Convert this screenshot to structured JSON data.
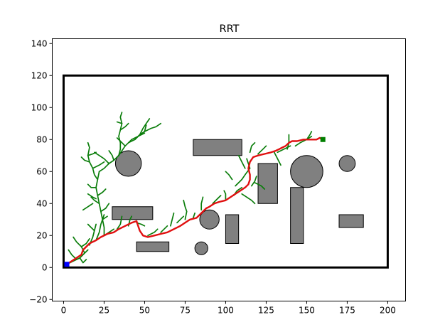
{
  "chart_data": {
    "type": "scatter",
    "title": "RRT",
    "xlim": [
      -7,
      211
    ],
    "ylim": [
      -21,
      143
    ],
    "x_ticks": [
      0,
      25,
      50,
      75,
      100,
      125,
      150,
      175,
      200
    ],
    "y_ticks": [
      -20,
      0,
      20,
      40,
      60,
      80,
      100,
      120,
      140
    ],
    "grid": false,
    "boundary": {
      "x0": 0,
      "y0": 0,
      "x1": 200,
      "y1": 120
    },
    "rect_obstacles": [
      {
        "x": 30,
        "y": 30,
        "w": 25,
        "h": 8
      },
      {
        "x": 45,
        "y": 10,
        "w": 20,
        "h": 6
      },
      {
        "x": 80,
        "y": 70,
        "w": 30,
        "h": 10
      },
      {
        "x": 100,
        "y": 15,
        "w": 8,
        "h": 18
      },
      {
        "x": 120,
        "y": 40,
        "w": 12,
        "h": 25
      },
      {
        "x": 140,
        "y": 15,
        "w": 8,
        "h": 35
      },
      {
        "x": 170,
        "y": 25,
        "w": 15,
        "h": 8
      }
    ],
    "circle_obstacles": [
      {
        "cx": 40,
        "cy": 65,
        "r": 8
      },
      {
        "cx": 90,
        "cy": 30,
        "r": 6
      },
      {
        "cx": 85,
        "cy": 12,
        "r": 4
      },
      {
        "cx": 150,
        "cy": 60,
        "r": 10
      },
      {
        "cx": 175,
        "cy": 65,
        "r": 5
      }
    ],
    "start": [
      2,
      2
    ],
    "goal": [
      160,
      80
    ],
    "start_color": "#0000ff",
    "goal_color": "#007f00",
    "tree_color": "#0a7d0a",
    "path_color": "#e01010",
    "tree_branches": [
      [
        [
          2,
          2
        ],
        [
          6,
          4
        ],
        [
          10,
          6
        ],
        [
          13,
          9
        ],
        [
          15,
          11
        ]
      ],
      [
        [
          8,
          5
        ],
        [
          5,
          8
        ],
        [
          3,
          11
        ]
      ],
      [
        [
          10,
          6
        ],
        [
          12,
          3
        ],
        [
          14,
          5
        ]
      ],
      [
        [
          13,
          9
        ],
        [
          11,
          13
        ],
        [
          8,
          16
        ],
        [
          6,
          19
        ]
      ],
      [
        [
          11,
          13
        ],
        [
          14,
          15
        ],
        [
          16,
          18
        ]
      ],
      [
        [
          16,
          14
        ],
        [
          18,
          19
        ],
        [
          19,
          23
        ],
        [
          20,
          27
        ]
      ],
      [
        [
          19,
          23
        ],
        [
          17,
          25
        ],
        [
          15,
          27
        ]
      ],
      [
        [
          20,
          17
        ],
        [
          22,
          22
        ],
        [
          23,
          27
        ],
        [
          24,
          30
        ],
        [
          25,
          33
        ]
      ],
      [
        [
          24,
          30
        ],
        [
          27,
          32
        ]
      ],
      [
        [
          25,
          20
        ],
        [
          25,
          25
        ],
        [
          24,
          30
        ],
        [
          23,
          35
        ],
        [
          22,
          40
        ],
        [
          21,
          45
        ],
        [
          20,
          50
        ],
        [
          21,
          55
        ],
        [
          22,
          60
        ]
      ],
      [
        [
          23,
          35
        ],
        [
          26,
          37
        ],
        [
          28,
          40
        ]
      ],
      [
        [
          22,
          40
        ],
        [
          19,
          42
        ],
        [
          17,
          44
        ]
      ],
      [
        [
          21,
          45
        ],
        [
          24,
          47
        ],
        [
          26,
          49
        ]
      ],
      [
        [
          20,
          50
        ],
        [
          17,
          50
        ],
        [
          15,
          52
        ]
      ],
      [
        [
          21,
          55
        ],
        [
          19,
          58
        ],
        [
          18,
          62
        ],
        [
          16,
          66
        ],
        [
          15,
          70
        ],
        [
          16,
          75
        ],
        [
          15,
          78
        ]
      ],
      [
        [
          18,
          62
        ],
        [
          22,
          64
        ],
        [
          25,
          66
        ]
      ],
      [
        [
          16,
          66
        ],
        [
          13,
          67
        ],
        [
          11,
          69
        ]
      ],
      [
        [
          15,
          70
        ],
        [
          18,
          71
        ],
        [
          20,
          72
        ]
      ],
      [
        [
          22,
          60
        ],
        [
          25,
          62
        ],
        [
          28,
          65
        ],
        [
          31,
          67
        ],
        [
          34,
          70
        ]
      ],
      [
        [
          31,
          67
        ],
        [
          30,
          70
        ],
        [
          28,
          73
        ]
      ],
      [
        [
          34,
          70
        ],
        [
          36,
          73
        ],
        [
          38,
          76
        ],
        [
          40,
          78
        ],
        [
          42,
          80
        ]
      ],
      [
        [
          38,
          76
        ],
        [
          35,
          79
        ],
        [
          33,
          81
        ]
      ],
      [
        [
          40,
          78
        ],
        [
          44,
          80
        ],
        [
          47,
          83
        ]
      ],
      [
        [
          42,
          80
        ],
        [
          46,
          82
        ],
        [
          50,
          84
        ]
      ],
      [
        [
          34,
          70
        ],
        [
          35,
          74
        ],
        [
          35,
          78
        ],
        [
          34,
          82
        ],
        [
          35,
          86
        ],
        [
          36,
          90
        ],
        [
          35,
          94
        ],
        [
          36,
          97
        ]
      ],
      [
        [
          35,
          86
        ],
        [
          38,
          88
        ],
        [
          40,
          90
        ]
      ],
      [
        [
          36,
          90
        ],
        [
          33,
          91
        ]
      ],
      [
        [
          44,
          80
        ],
        [
          47,
          83
        ],
        [
          50,
          85
        ],
        [
          54,
          87
        ],
        [
          57,
          88
        ],
        [
          60,
          90
        ]
      ],
      [
        [
          47,
          83
        ],
        [
          49,
          87
        ],
        [
          51,
          90
        ],
        [
          53,
          93
        ]
      ],
      [
        [
          50,
          85
        ],
        [
          51,
          89
        ]
      ],
      [
        [
          28,
          65
        ],
        [
          25,
          68
        ],
        [
          22,
          70
        ],
        [
          19,
          72
        ]
      ],
      [
        [
          25,
          20
        ],
        [
          28,
          22
        ],
        [
          31,
          24
        ]
      ],
      [
        [
          33,
          24
        ],
        [
          35,
          27
        ],
        [
          36,
          32
        ]
      ],
      [
        [
          40,
          26
        ],
        [
          41,
          30
        ],
        [
          42,
          32
        ]
      ],
      [
        [
          45,
          28
        ],
        [
          48,
          27
        ],
        [
          50,
          26
        ]
      ],
      [
        [
          52,
          20
        ],
        [
          56,
          22
        ],
        [
          58,
          24
        ]
      ],
      [
        [
          60,
          22
        ],
        [
          62,
          24
        ],
        [
          64,
          26
        ]
      ],
      [
        [
          66,
          26
        ],
        [
          67,
          30
        ],
        [
          68,
          34
        ]
      ],
      [
        [
          70,
          28
        ],
        [
          72,
          30
        ],
        [
          74,
          32
        ]
      ],
      [
        [
          75,
          30
        ],
        [
          76,
          35
        ],
        [
          75,
          38
        ],
        [
          74,
          42
        ]
      ],
      [
        [
          80,
          31
        ],
        [
          81,
          34
        ]
      ],
      [
        [
          85,
          36
        ],
        [
          85,
          40
        ],
        [
          86,
          44
        ]
      ],
      [
        [
          92,
          40
        ],
        [
          95,
          43
        ],
        [
          97,
          45
        ]
      ],
      [
        [
          100,
          42
        ],
        [
          100,
          46
        ],
        [
          99,
          48
        ]
      ],
      [
        [
          105,
          45
        ],
        [
          107,
          48
        ],
        [
          110,
          50
        ]
      ],
      [
        [
          110,
          46
        ],
        [
          113,
          44
        ],
        [
          116,
          42
        ],
        [
          118,
          40
        ]
      ],
      [
        [
          116,
          51
        ],
        [
          118,
          54
        ],
        [
          119,
          57
        ]
      ],
      [
        [
          118,
          53
        ],
        [
          122,
          51
        ],
        [
          124,
          49
        ]
      ],
      [
        [
          113,
          68
        ],
        [
          115,
          62
        ],
        [
          112,
          58
        ],
        [
          110,
          55
        ],
        [
          108,
          53
        ],
        [
          106,
          51
        ]
      ],
      [
        [
          115,
          72
        ],
        [
          116,
          76
        ],
        [
          118,
          78
        ]
      ],
      [
        [
          120,
          71
        ],
        [
          123,
          74
        ],
        [
          125,
          76
        ]
      ],
      [
        [
          132,
          72
        ],
        [
          136,
          74
        ],
        [
          140,
          76
        ]
      ],
      [
        [
          138,
          74
        ],
        [
          139,
          78
        ],
        [
          139,
          83
        ]
      ],
      [
        [
          143,
          76
        ],
        [
          146,
          78
        ],
        [
          150,
          80
        ],
        [
          153,
          82
        ]
      ],
      [
        [
          150,
          80
        ],
        [
          152,
          83
        ],
        [
          153,
          85
        ]
      ],
      [
        [
          130,
          72
        ],
        [
          132,
          68
        ],
        [
          134,
          64
        ]
      ],
      [
        [
          100,
          60
        ],
        [
          102,
          58
        ],
        [
          104,
          55
        ]
      ],
      [
        [
          108,
          70
        ],
        [
          110,
          66
        ],
        [
          112,
          62
        ]
      ],
      [
        [
          15,
          46
        ],
        [
          18,
          44
        ],
        [
          20,
          43
        ]
      ],
      [
        [
          12,
          36
        ],
        [
          15,
          38
        ],
        [
          18,
          40
        ]
      ]
    ],
    "path": [
      [
        2,
        2
      ],
      [
        5,
        4
      ],
      [
        8,
        6
      ],
      [
        11,
        8
      ],
      [
        12,
        11
      ],
      [
        14,
        13
      ],
      [
        16,
        15
      ],
      [
        20,
        17
      ],
      [
        23,
        19
      ],
      [
        27,
        21
      ],
      [
        31,
        22
      ],
      [
        34,
        24
      ],
      [
        38,
        26
      ],
      [
        42,
        28
      ],
      [
        45,
        29
      ],
      [
        46,
        26
      ],
      [
        47,
        23
      ],
      [
        49,
        20
      ],
      [
        52,
        19
      ],
      [
        56,
        20
      ],
      [
        60,
        21
      ],
      [
        64,
        22
      ],
      [
        68,
        24
      ],
      [
        72,
        26
      ],
      [
        75,
        28
      ],
      [
        78,
        30
      ],
      [
        82,
        31
      ],
      [
        84,
        33
      ],
      [
        86,
        35
      ],
      [
        88,
        37
      ],
      [
        90,
        38
      ],
      [
        93,
        40
      ],
      [
        96,
        41
      ],
      [
        100,
        42
      ],
      [
        103,
        44
      ],
      [
        106,
        46
      ],
      [
        109,
        48
      ],
      [
        112,
        50
      ],
      [
        114,
        52
      ],
      [
        115,
        55
      ],
      [
        115,
        58
      ],
      [
        114,
        62
      ],
      [
        115,
        66
      ],
      [
        117,
        69
      ],
      [
        120,
        70
      ],
      [
        124,
        71
      ],
      [
        128,
        72
      ],
      [
        131,
        73
      ],
      [
        133,
        74
      ],
      [
        135,
        75
      ],
      [
        137,
        76
      ],
      [
        139,
        78
      ],
      [
        141,
        79
      ],
      [
        144,
        79
      ],
      [
        148,
        80
      ],
      [
        152,
        80
      ],
      [
        156,
        80
      ],
      [
        158,
        81
      ],
      [
        160,
        80
      ]
    ]
  }
}
